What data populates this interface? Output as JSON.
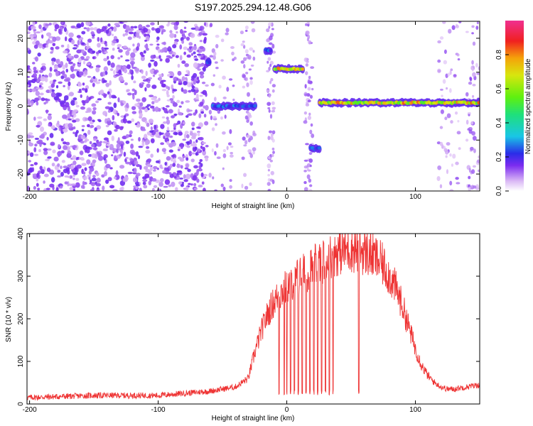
{
  "chart_data": [
    {
      "type": "heatmap",
      "title": "S197.2025.294.12.48.G06",
      "xlabel": "Height of straight line (km)",
      "ylabel": "Frequency (Hz)",
      "xlim": [
        -202,
        150
      ],
      "ylim": [
        -25,
        25
      ],
      "xticks": [
        "-200",
        "-100",
        "0",
        "100"
      ],
      "xtick_values": [
        -200,
        -100,
        0,
        100
      ],
      "yticks": [
        "-20",
        "-10",
        "0",
        "10",
        "20"
      ],
      "ytick_values": [
        -20,
        -10,
        0,
        10,
        20
      ],
      "colorbar": {
        "label": "Normalized spectral amplitude",
        "ticks": [
          "0.0",
          "0.2",
          "0.4",
          "0.6",
          "0.8"
        ],
        "tick_values": [
          0.0,
          0.2,
          0.4,
          0.6,
          0.8
        ],
        "range": [
          0,
          1
        ]
      },
      "features": [
        {
          "name": "noise-field",
          "x_range": [
            -202,
            -62
          ],
          "f_range": [
            -25,
            25
          ],
          "amplitude": 0.12
        },
        {
          "name": "segment-a",
          "x_range": [
            -62,
            -60
          ],
          "f": 13,
          "amplitude": 0.3
        },
        {
          "name": "segment-b",
          "x_range": [
            -58,
            -24
          ],
          "f": 0,
          "amplitude": 0.3
        },
        {
          "name": "segment-c",
          "x_range": [
            -17,
            -12
          ],
          "f": 16.5,
          "amplitude": 0.3
        },
        {
          "name": "segment-d",
          "x_range": [
            -10,
            13
          ],
          "f": 11,
          "amplitude": 0.85
        },
        {
          "name": "segment-e",
          "x_range": [
            18,
            26
          ],
          "f": -12.5,
          "amplitude": 0.3
        },
        {
          "name": "main-tone",
          "x_range": [
            25,
            150
          ],
          "f": 1,
          "amplitude": 0.85
        }
      ]
    },
    {
      "type": "line",
      "xlabel": "Height of straight line (km)",
      "ylabel": "SNR (10 * v/v)",
      "xlim": [
        -202,
        150
      ],
      "ylim": [
        0,
        400
      ],
      "xticks": [
        "-200",
        "-100",
        "0",
        "100"
      ],
      "xtick_values": [
        -200,
        -100,
        0,
        100
      ],
      "yticks": [
        "0",
        "100",
        "200",
        "300",
        "400"
      ],
      "ytick_values": [
        0,
        100,
        200,
        300,
        400
      ],
      "color": "#ee3333",
      "series": [
        {
          "name": "SNR",
          "envelope_x": [
            -202,
            -150,
            -100,
            -80,
            -60,
            -40,
            -30,
            -25,
            -20,
            -15,
            -10,
            -5,
            0,
            5,
            10,
            15,
            20,
            25,
            30,
            35,
            40,
            45,
            50,
            55,
            60,
            65,
            70,
            75,
            80,
            85,
            90,
            95,
            100,
            105,
            110,
            115,
            120,
            125,
            130,
            135,
            140,
            150
          ],
          "envelope_y": [
            15,
            20,
            20,
            25,
            30,
            40,
            60,
            120,
            170,
            210,
            240,
            260,
            275,
            290,
            300,
            310,
            320,
            330,
            340,
            350,
            358,
            362,
            365,
            362,
            358,
            350,
            340,
            325,
            300,
            270,
            230,
            180,
            130,
            90,
            65,
            50,
            40,
            35,
            35,
            38,
            40,
            45
          ]
        }
      ],
      "dropouts_x": [
        -6,
        -2,
        0,
        3,
        6,
        9,
        12,
        15,
        18,
        21,
        24,
        27,
        30,
        33,
        36,
        56
      ]
    }
  ]
}
